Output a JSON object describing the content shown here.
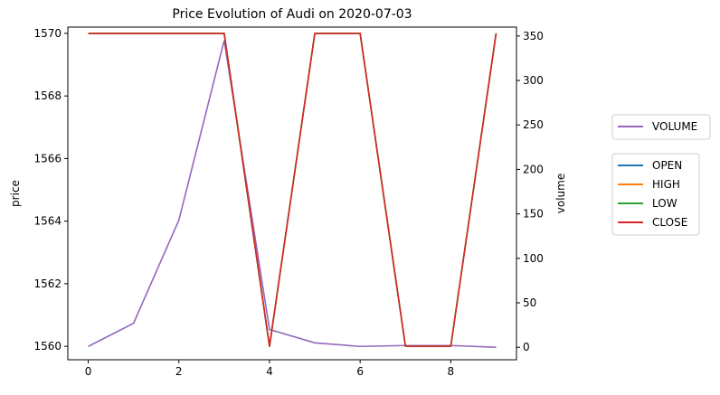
{
  "chart_data": {
    "type": "line",
    "title": "Price Evolution of Audi on 2020-07-03",
    "xlabel": "",
    "ylabel": "price",
    "y2label": "volume",
    "x": [
      0,
      1,
      2,
      3,
      4,
      5,
      6,
      7,
      8,
      9
    ],
    "xlim": [
      -0.45,
      9.45
    ],
    "ylim": [
      1559.57,
      1570.2
    ],
    "y2lim": [
      -14,
      360
    ],
    "xticks": [
      0,
      2,
      4,
      6,
      8
    ],
    "yticks": [
      1560,
      1562,
      1564,
      1566,
      1568,
      1570
    ],
    "y2ticks": [
      0,
      50,
      100,
      150,
      200,
      250,
      300,
      350
    ],
    "grid": false,
    "price_series": [
      {
        "name": "OPEN",
        "color": "#1f77b4",
        "values": [
          1570,
          1570,
          1570,
          1570,
          1560,
          1570,
          1570,
          1560,
          1560,
          1570
        ]
      },
      {
        "name": "HIGH",
        "color": "#ff7f0e",
        "values": [
          1570,
          1570,
          1570,
          1570,
          1560,
          1570,
          1570,
          1560,
          1560,
          1570
        ]
      },
      {
        "name": "LOW",
        "color": "#2ca02c",
        "values": [
          1570,
          1570,
          1570,
          1570,
          1560,
          1570,
          1570,
          1560,
          1560,
          1570
        ]
      },
      {
        "name": "CLOSE",
        "color": "#d62728",
        "values": [
          1570,
          1570,
          1570,
          1570,
          1560,
          1570,
          1570,
          1560,
          1560,
          1570
        ]
      }
    ],
    "volume_series": {
      "name": "VOLUME",
      "color": "#9467bd",
      "values": [
        1,
        27,
        143,
        345,
        20,
        5,
        1,
        2,
        2,
        0
      ]
    },
    "legends": {
      "volume_placement": "right",
      "price_placement": "right"
    }
  }
}
